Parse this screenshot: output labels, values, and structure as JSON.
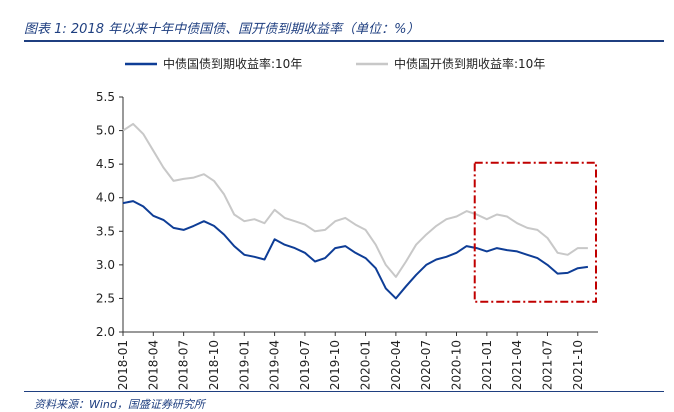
{
  "header": {
    "title": "图表 1:  2018 年以来十年中债国债、国开债到期收益率（单位：%）"
  },
  "footer": {
    "source": "资料来源：Wind，国盛证券研究所"
  },
  "chart_data": {
    "type": "line",
    "title": "",
    "xlabel": "",
    "ylabel": "",
    "ylim": [
      2.0,
      5.5
    ],
    "yticks": [
      "2.0",
      "2.5",
      "3.0",
      "3.5",
      "4.0",
      "4.5",
      "5.0",
      "5.5"
    ],
    "xticks": [
      "2018-01",
      "2018-04",
      "2018-07",
      "2018-10",
      "2019-01",
      "2019-04",
      "2019-07",
      "2019-10",
      "2020-01",
      "2020-04",
      "2020-07",
      "2020-10",
      "2021-01",
      "2021-04",
      "2021-07",
      "2021-10"
    ],
    "legend_position": "top",
    "grid": false,
    "colors": {
      "primary": "#0e3d96",
      "secondary": "#c8c8c8",
      "highlight": "#c00000"
    },
    "series": [
      {
        "name": "中债国债到期收益率:10年",
        "color": "#0e3d96",
        "x": [
          "2018-01",
          "2018-02",
          "2018-03",
          "2018-04",
          "2018-05",
          "2018-06",
          "2018-07",
          "2018-08",
          "2018-09",
          "2018-10",
          "2018-11",
          "2018-12",
          "2019-01",
          "2019-02",
          "2019-03",
          "2019-04",
          "2019-05",
          "2019-06",
          "2019-07",
          "2019-08",
          "2019-09",
          "2019-10",
          "2019-11",
          "2019-12",
          "2020-01",
          "2020-02",
          "2020-03",
          "2020-04",
          "2020-05",
          "2020-06",
          "2020-07",
          "2020-08",
          "2020-09",
          "2020-10",
          "2020-11",
          "2020-12",
          "2021-01",
          "2021-02",
          "2021-03",
          "2021-04",
          "2021-05",
          "2021-06",
          "2021-07",
          "2021-08",
          "2021-09",
          "2021-10",
          "2021-11"
        ],
        "values": [
          3.92,
          3.95,
          3.87,
          3.73,
          3.67,
          3.55,
          3.52,
          3.58,
          3.65,
          3.58,
          3.45,
          3.28,
          3.15,
          3.12,
          3.08,
          3.38,
          3.3,
          3.25,
          3.18,
          3.05,
          3.1,
          3.25,
          3.28,
          3.18,
          3.1,
          2.95,
          2.65,
          2.5,
          2.68,
          2.85,
          3.0,
          3.08,
          3.12,
          3.18,
          3.28,
          3.25,
          3.2,
          3.25,
          3.22,
          3.2,
          3.15,
          3.1,
          3.0,
          2.87,
          2.88,
          2.95,
          2.97
        ]
      },
      {
        "name": "中债国开债到期收益率:10年",
        "color": "#c8c8c8",
        "x": [
          "2018-01",
          "2018-02",
          "2018-03",
          "2018-04",
          "2018-05",
          "2018-06",
          "2018-07",
          "2018-08",
          "2018-09",
          "2018-10",
          "2018-11",
          "2018-12",
          "2019-01",
          "2019-02",
          "2019-03",
          "2019-04",
          "2019-05",
          "2019-06",
          "2019-07",
          "2019-08",
          "2019-09",
          "2019-10",
          "2019-11",
          "2019-12",
          "2020-01",
          "2020-02",
          "2020-03",
          "2020-04",
          "2020-05",
          "2020-06",
          "2020-07",
          "2020-08",
          "2020-09",
          "2020-10",
          "2020-11",
          "2020-12",
          "2021-01",
          "2021-02",
          "2021-03",
          "2021-04",
          "2021-05",
          "2021-06",
          "2021-07",
          "2021-08",
          "2021-09",
          "2021-10",
          "2021-11"
        ],
        "values": [
          5.0,
          5.1,
          4.95,
          4.7,
          4.45,
          4.25,
          4.28,
          4.3,
          4.35,
          4.25,
          4.05,
          3.75,
          3.65,
          3.68,
          3.62,
          3.82,
          3.7,
          3.65,
          3.6,
          3.5,
          3.52,
          3.65,
          3.7,
          3.6,
          3.52,
          3.3,
          3.0,
          2.82,
          3.05,
          3.3,
          3.45,
          3.58,
          3.68,
          3.72,
          3.8,
          3.75,
          3.68,
          3.75,
          3.72,
          3.62,
          3.55,
          3.52,
          3.4,
          3.18,
          3.15,
          3.25,
          3.25
        ]
      }
    ]
  }
}
